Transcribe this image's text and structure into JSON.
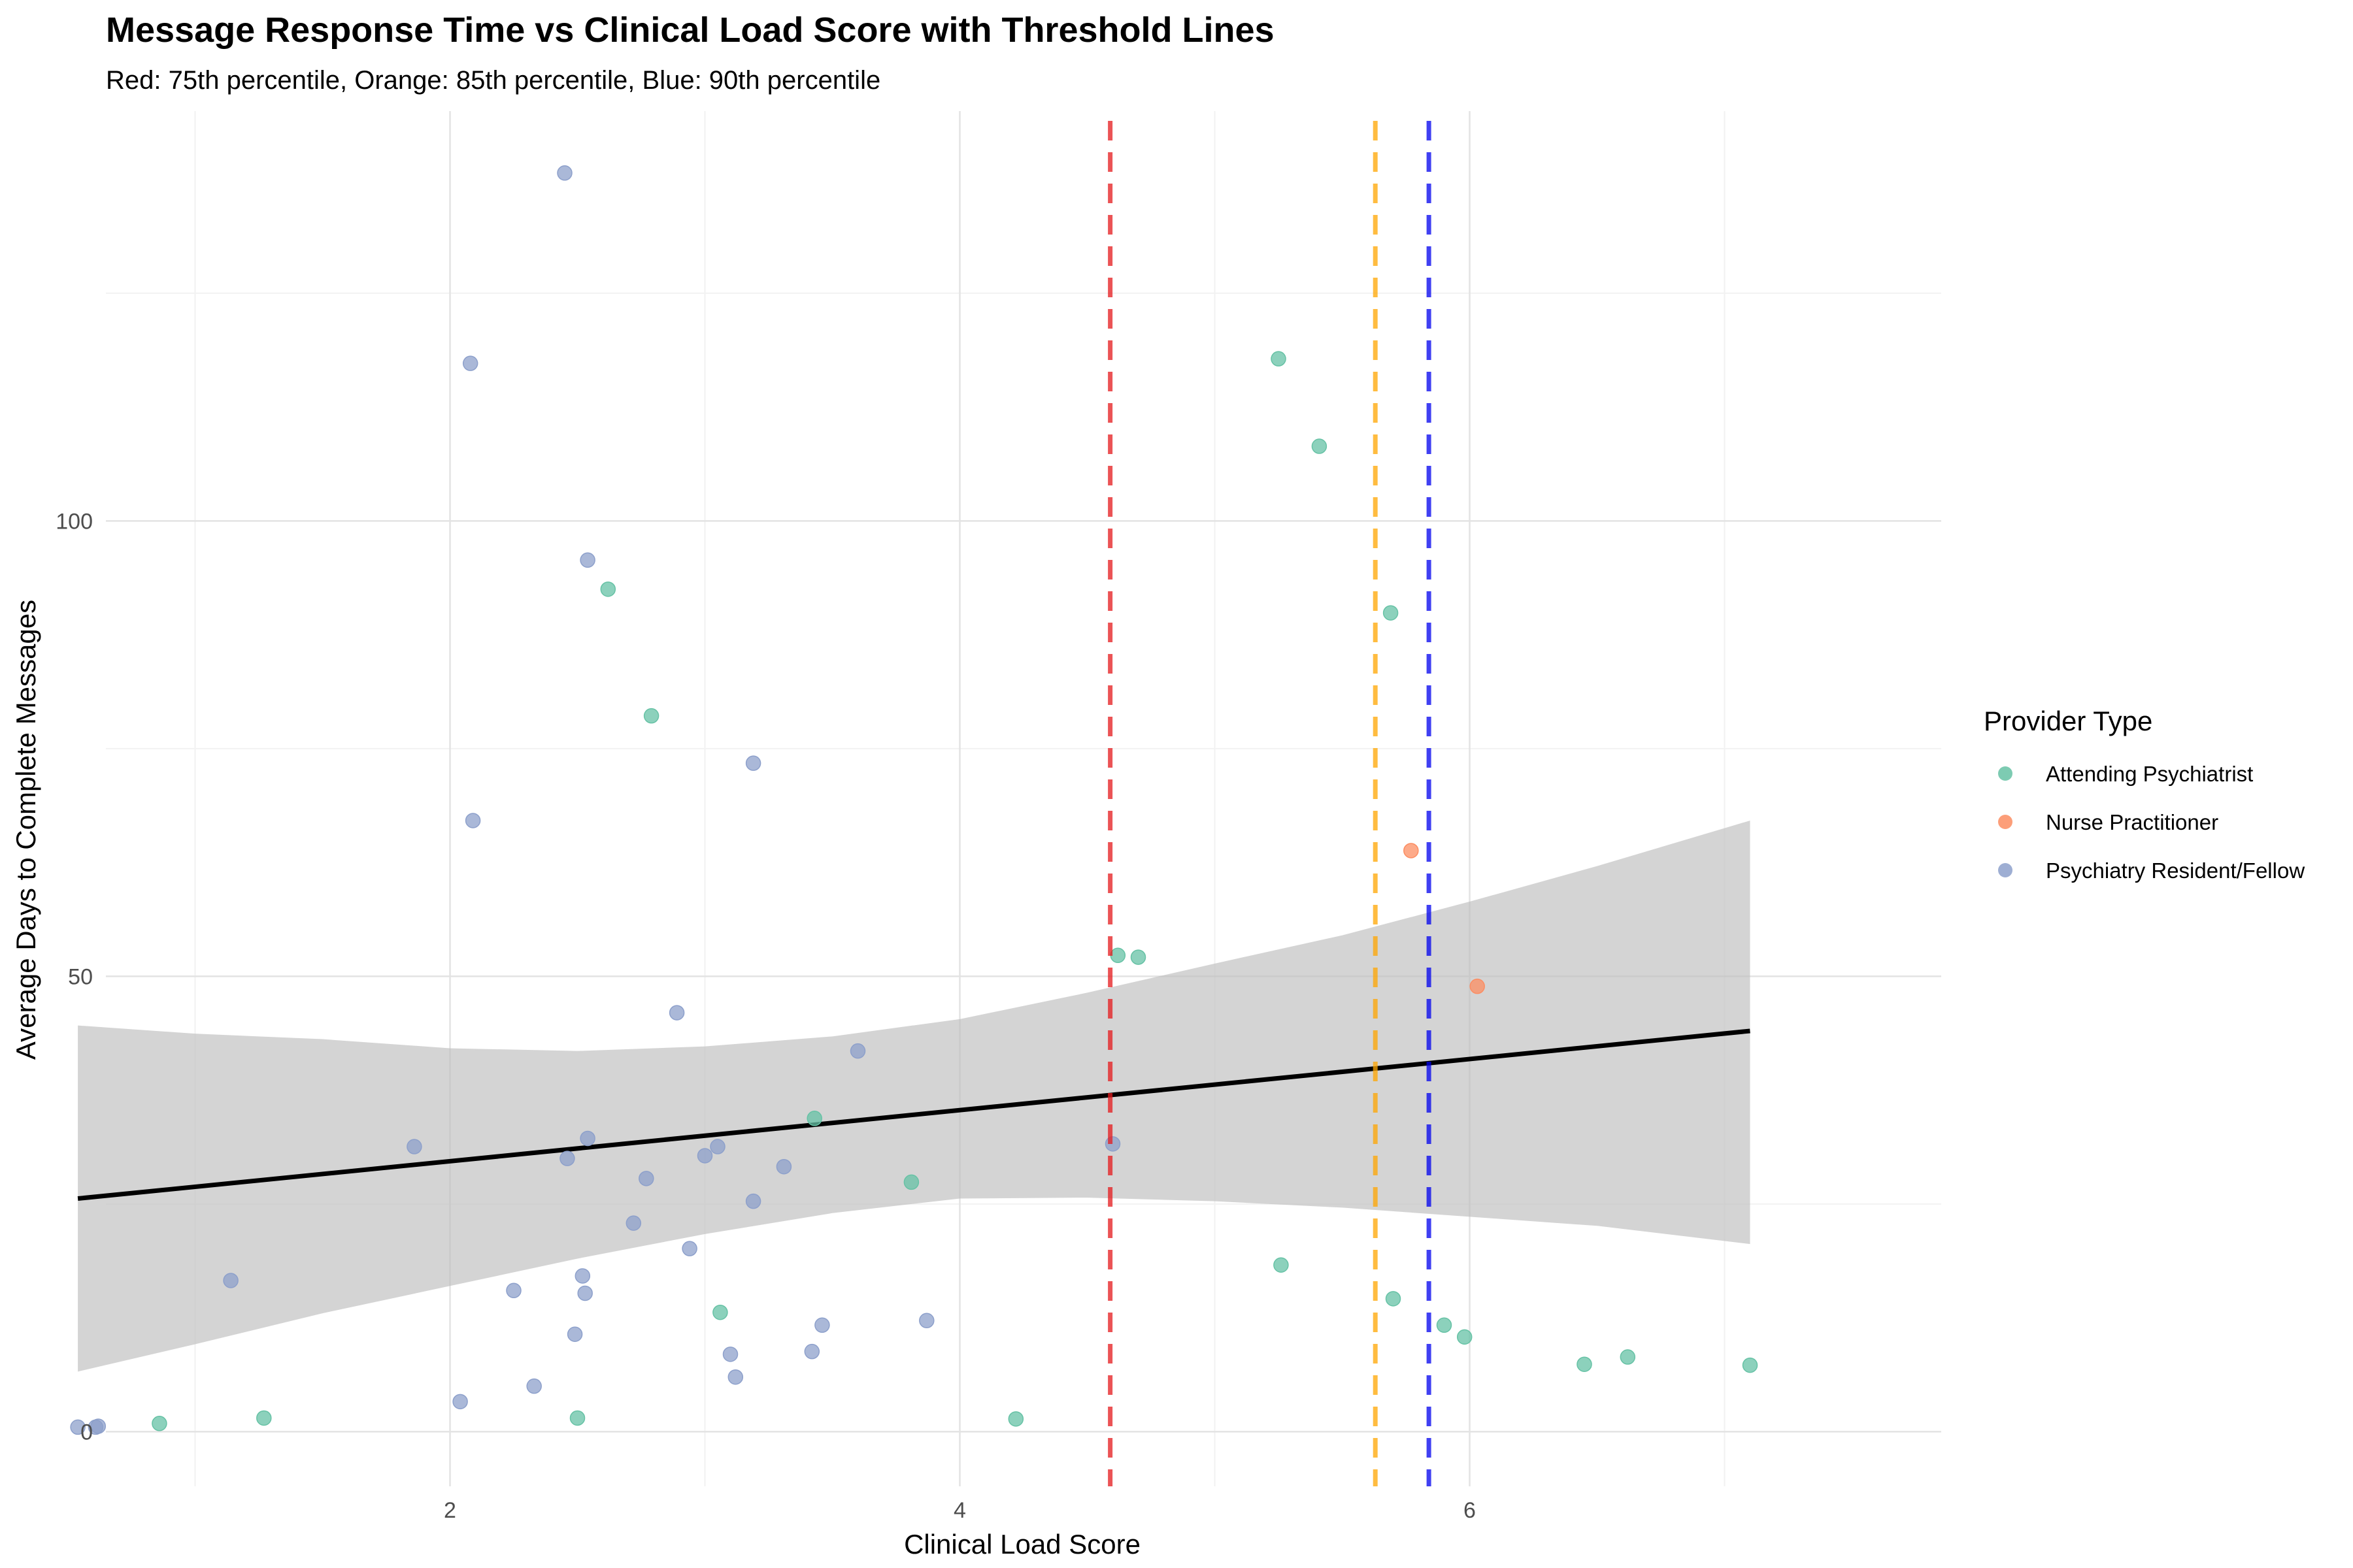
{
  "chart_data": {
    "type": "scatter",
    "title": "Message Response Time vs Clinical Load Score with Threshold Lines",
    "subtitle": "Red: 75th percentile, Orange: 85th percentile, Blue: 90th percentile",
    "xlabel": "Clinical Load Score",
    "ylabel": "Average Days to Complete Messages",
    "xlim": [
      0.65,
      7.85
    ],
    "ylim": [
      -6,
      145
    ],
    "x_ticks": [
      2,
      4,
      6
    ],
    "y_ticks": [
      0,
      50,
      100
    ],
    "grid": true,
    "legend": {
      "title": "Provider Type",
      "placement": "right"
    },
    "series": [
      {
        "name": "Attending Psychiatrist",
        "color": "#66c2a5",
        "points": [
          [
            0.86,
            0.9
          ],
          [
            1.27,
            1.5
          ],
          [
            2.5,
            1.5
          ],
          [
            2.62,
            92.5
          ],
          [
            2.79,
            78.6
          ],
          [
            3.06,
            13.1
          ],
          [
            3.43,
            34.4
          ],
          [
            3.81,
            27.4
          ],
          [
            4.22,
            1.4
          ],
          [
            4.62,
            52.3
          ],
          [
            4.7,
            52.1
          ],
          [
            5.25,
            117.8
          ],
          [
            5.26,
            18.3
          ],
          [
            5.41,
            108.2
          ],
          [
            5.69,
            89.9
          ],
          [
            5.7,
            14.6
          ],
          [
            5.9,
            11.7
          ],
          [
            5.98,
            10.4
          ],
          [
            6.45,
            7.4
          ],
          [
            6.62,
            8.2
          ],
          [
            7.1,
            7.3
          ]
        ]
      },
      {
        "name": "Nurse Practitioner",
        "color": "#fc8d62",
        "points": [
          [
            5.77,
            63.8
          ],
          [
            6.03,
            48.9
          ]
        ]
      },
      {
        "name": "Psychiatry Resident/Fellow",
        "color": "#8da0cb",
        "points": [
          [
            0.54,
            0.5
          ],
          [
            0.61,
            0.5
          ],
          [
            0.62,
            0.6
          ],
          [
            1.14,
            16.6
          ],
          [
            1.86,
            31.3
          ],
          [
            2.04,
            3.3
          ],
          [
            2.08,
            117.3
          ],
          [
            2.09,
            67.1
          ],
          [
            2.25,
            15.5
          ],
          [
            2.33,
            5.0
          ],
          [
            2.45,
            138.2
          ],
          [
            2.46,
            30.0
          ],
          [
            2.49,
            10.7
          ],
          [
            2.52,
            17.1
          ],
          [
            2.53,
            15.2
          ],
          [
            2.54,
            95.7
          ],
          [
            2.54,
            32.2
          ],
          [
            2.72,
            22.9
          ],
          [
            2.77,
            27.8
          ],
          [
            2.89,
            46.0
          ],
          [
            2.94,
            20.1
          ],
          [
            3.0,
            30.3
          ],
          [
            3.05,
            31.3
          ],
          [
            3.1,
            8.5
          ],
          [
            3.12,
            6.0
          ],
          [
            3.19,
            73.4
          ],
          [
            3.19,
            25.3
          ],
          [
            3.31,
            29.1
          ],
          [
            3.42,
            8.8
          ],
          [
            3.46,
            11.7
          ],
          [
            3.6,
            41.8
          ],
          [
            3.87,
            12.2
          ],
          [
            4.6,
            31.6
          ]
        ]
      }
    ],
    "trend_line": {
      "color": "#000000",
      "points": [
        [
          0.54,
          25.6
        ],
        [
          7.1,
          44.0
        ]
      ]
    },
    "confidence_band": {
      "color": "#bdbdbd",
      "upper": [
        [
          0.54,
          44.6
        ],
        [
          1.0,
          43.7
        ],
        [
          1.5,
          43.1
        ],
        [
          2.0,
          42.1
        ],
        [
          2.5,
          41.8
        ],
        [
          3.0,
          42.3
        ],
        [
          3.5,
          43.4
        ],
        [
          4.0,
          45.3
        ],
        [
          4.5,
          48.2
        ],
        [
          5.0,
          51.4
        ],
        [
          5.5,
          54.5
        ],
        [
          6.0,
          58.2
        ],
        [
          6.5,
          62.1
        ],
        [
          7.1,
          67.1
        ]
      ],
      "lower": [
        [
          0.54,
          6.6
        ],
        [
          1.0,
          9.6
        ],
        [
          1.5,
          13.0
        ],
        [
          2.0,
          16.0
        ],
        [
          2.5,
          19.0
        ],
        [
          3.0,
          21.7
        ],
        [
          3.5,
          24.0
        ],
        [
          4.0,
          25.6
        ],
        [
          4.5,
          25.7
        ],
        [
          5.0,
          25.3
        ],
        [
          5.5,
          24.6
        ],
        [
          6.0,
          23.6
        ],
        [
          6.5,
          22.6
        ],
        [
          7.1,
          20.6
        ]
      ]
    },
    "threshold_lines": [
      {
        "percentile": "75th",
        "x": 4.59,
        "color": "#e41a1c"
      },
      {
        "percentile": "85th",
        "x": 5.63,
        "color": "#ffa500"
      },
      {
        "percentile": "90th",
        "x": 5.84,
        "color": "#0000ee"
      }
    ]
  }
}
